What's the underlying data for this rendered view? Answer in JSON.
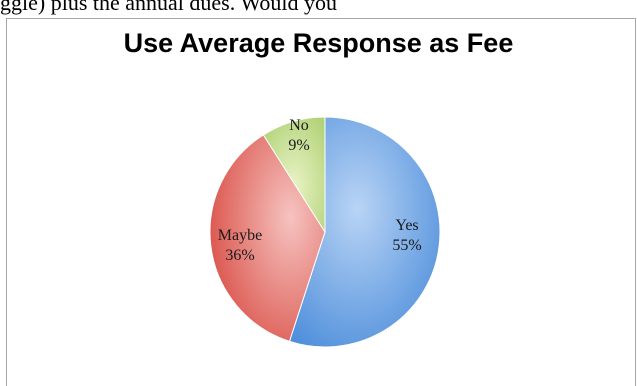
{
  "header_fragment": "ggle) plus the annual dues. Would you",
  "chart_data": {
    "type": "pie",
    "title": "Use Average Response as Fee",
    "categories": [
      "Yes",
      "Maybe",
      "No"
    ],
    "values": [
      55,
      36,
      9
    ],
    "value_labels": [
      "55%",
      "36%",
      "9%"
    ],
    "colors": [
      "#6aa0e0",
      "#e07070",
      "#c8e08a"
    ]
  }
}
